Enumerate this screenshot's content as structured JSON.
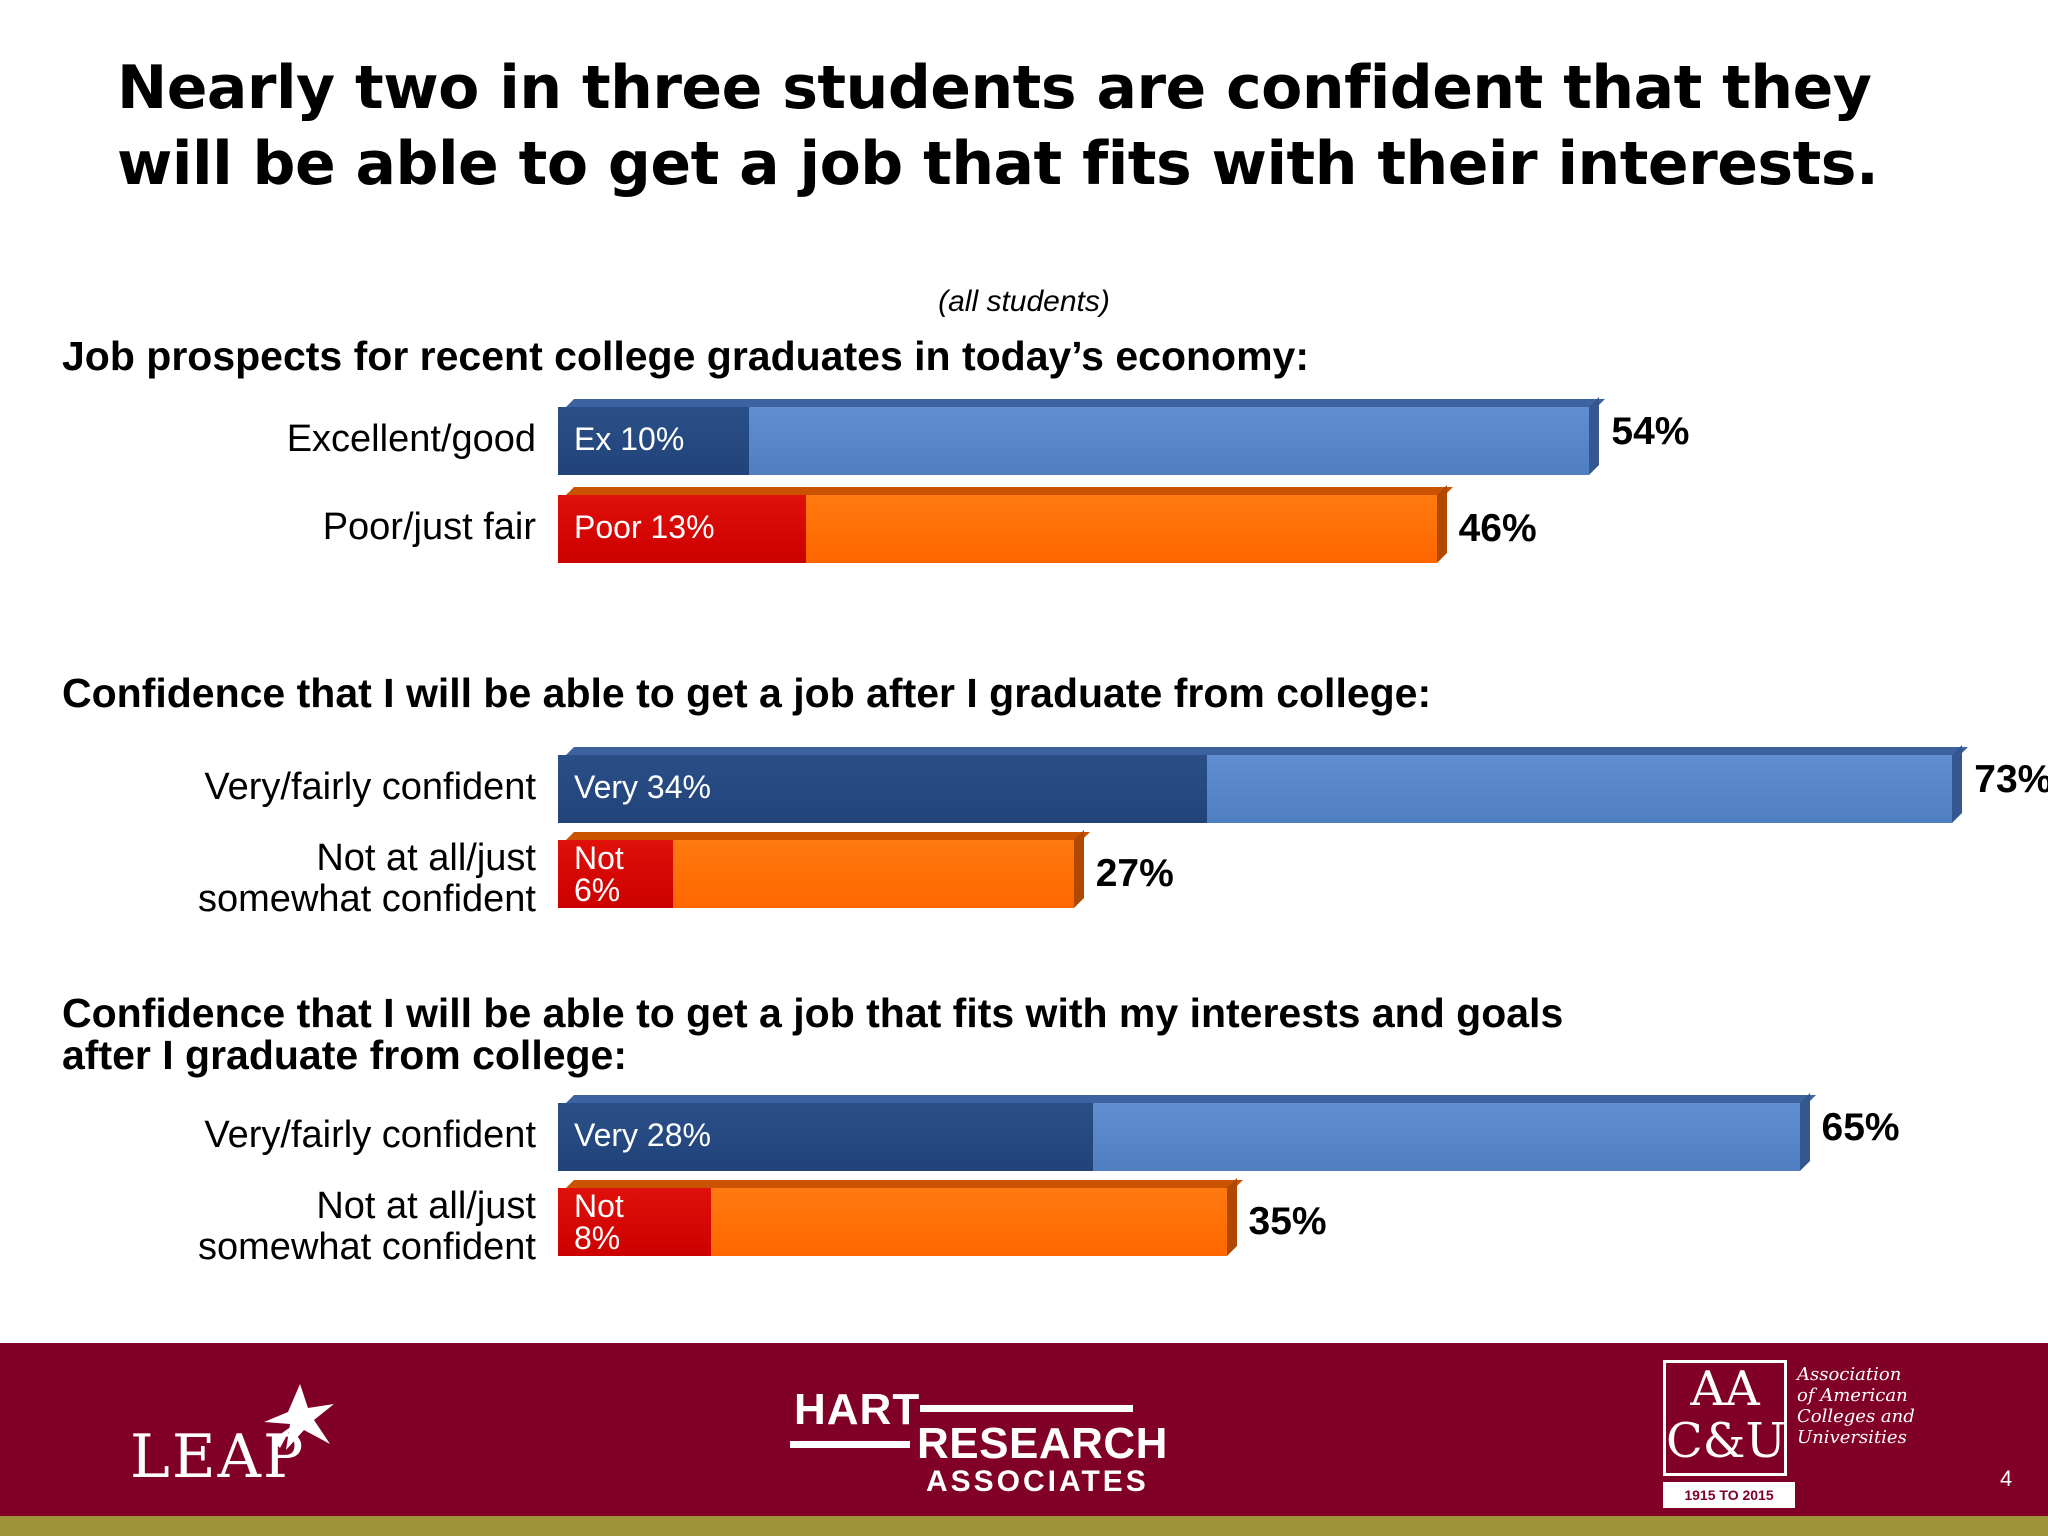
{
  "slide": {
    "title": "Nearly two in three students are confident that they will be able to get a job that fits with their interests.",
    "page_number": "4"
  },
  "chart_data": {
    "type": "bar",
    "subtitle": "(all students)",
    "groups": [
      {
        "heading": "Job prospects for recent college graduates in today’s economy:",
        "rows": [
          {
            "label": "Excellent/good",
            "total": 54,
            "total_label": "54%",
            "inner": 10,
            "inner_label": "Ex 10%",
            "color": "blue"
          },
          {
            "label": "Poor/just fair",
            "total": 46,
            "total_label": "46%",
            "inner": 13,
            "inner_label": "Poor  13%",
            "color": "orange"
          }
        ]
      },
      {
        "heading": "Confidence that I will be able to get a job after I graduate from college:",
        "rows": [
          {
            "label": "Very/fairly confident",
            "total": 73,
            "total_label": "73%",
            "inner": 34,
            "inner_label": "Very  34%",
            "color": "blue"
          },
          {
            "label": "Not at all/just\nsomewhat confident",
            "total": 27,
            "total_label": "27%",
            "inner": 6,
            "inner_label": "Not\n6%",
            "color": "orange"
          }
        ]
      },
      {
        "heading": "Confidence that I will be able to get a job that fits with my interests and goals after I graduate from college:",
        "rows": [
          {
            "label": "Very/fairly confident",
            "total": 65,
            "total_label": "65%",
            "inner": 28,
            "inner_label": "Very  28%",
            "color": "blue"
          },
          {
            "label": "Not at all/just\nsomewhat confident",
            "total": 35,
            "total_label": "35%",
            "inner": 8,
            "inner_label": "Not\n8%",
            "color": "orange"
          }
        ]
      }
    ],
    "colors": {
      "blue": "#4f7fc0",
      "blue_inner": "#21437a",
      "orange": "#ff6600",
      "orange_inner": "#cc0000"
    }
  },
  "footer": {
    "leap": "LEAP",
    "hart_line1": "HART",
    "hart_line2": "RESEARCH",
    "hart_line3": "ASSOCIATES",
    "aacu_mark": "AA\nC&U",
    "aacu_text": "Association\nof American\nColleges and\nUniversities",
    "aacu_years": "1915 TO 2015",
    "background": "#800028",
    "stripe": "#a0943a"
  }
}
